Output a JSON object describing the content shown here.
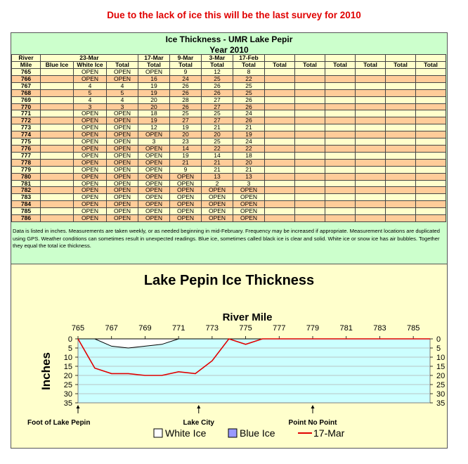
{
  "banner": "Due to the lack of ice this will be the last survey for 2010",
  "table": {
    "title": "Ice Thickness - UMR Lake Pepir",
    "year": "Year 2010",
    "header_row1": [
      "River",
      "23-Mar",
      "17-Mar",
      "9-Mar",
      "3-Mar",
      "17-Feb"
    ],
    "header_row2": [
      "Mile",
      "Blue Ice",
      "White Ice",
      "Total",
      "Total",
      "Total",
      "Total",
      "Total",
      "Total",
      "Total",
      "Total",
      "Total",
      "Total",
      "Total",
      "Total"
    ],
    "rows": [
      [
        "765",
        "",
        "OPEN",
        "OPEN",
        "OPEN",
        "9",
        "12",
        "8"
      ],
      [
        "766",
        "",
        "OPEN",
        "OPEN",
        "16",
        "24",
        "25",
        "22"
      ],
      [
        "767",
        "",
        "4",
        "4",
        "19",
        "26",
        "26",
        "25"
      ],
      [
        "768",
        "",
        "5",
        "5",
        "19",
        "26",
        "26",
        "25"
      ],
      [
        "769",
        "",
        "4",
        "4",
        "20",
        "28",
        "27",
        "26"
      ],
      [
        "770",
        "",
        "3",
        "3",
        "20",
        "26",
        "27",
        "26"
      ],
      [
        "771",
        "",
        "OPEN",
        "OPEN",
        "18",
        "25",
        "25",
        "24"
      ],
      [
        "772",
        "",
        "OPEN",
        "OPEN",
        "19",
        "27",
        "27",
        "26"
      ],
      [
        "773",
        "",
        "OPEN",
        "OPEN",
        "12",
        "19",
        "21",
        "21"
      ],
      [
        "774",
        "",
        "OPEN",
        "OPEN",
        "OPEN",
        "20",
        "20",
        "19"
      ],
      [
        "775",
        "",
        "OPEN",
        "OPEN",
        "3",
        "23",
        "25",
        "24"
      ],
      [
        "776",
        "",
        "OPEN",
        "OPEN",
        "OPEN",
        "14",
        "22",
        "22"
      ],
      [
        "777",
        "",
        "OPEN",
        "OPEN",
        "OPEN",
        "19",
        "14",
        "18"
      ],
      [
        "778",
        "",
        "OPEN",
        "OPEN",
        "OPEN",
        "21",
        "21",
        "20"
      ],
      [
        "779",
        "",
        "OPEN",
        "OPEN",
        "OPEN",
        "9",
        "21",
        "21"
      ],
      [
        "780",
        "",
        "OPEN",
        "OPEN",
        "OPEN",
        "OPEN",
        "13",
        "13"
      ],
      [
        "781",
        "",
        "OPEN",
        "OPEN",
        "OPEN",
        "OPEN",
        "2",
        "3"
      ],
      [
        "782",
        "",
        "OPEN",
        "OPEN",
        "OPEN",
        "OPEN",
        "OPEN",
        "OPEN"
      ],
      [
        "783",
        "",
        "OPEN",
        "OPEN",
        "OPEN",
        "OPEN",
        "OPEN",
        "OPEN"
      ],
      [
        "784",
        "",
        "OPEN",
        "OPEN",
        "OPEN",
        "OPEN",
        "OPEN",
        "OPEN"
      ],
      [
        "785",
        "",
        "OPEN",
        "OPEN",
        "OPEN",
        "OPEN",
        "OPEN",
        "OPEN"
      ],
      [
        "786",
        "",
        "OPEN",
        "OPEN",
        "OPEN",
        "OPEN",
        "OPEN",
        "OPEN"
      ]
    ],
    "note": "Data is listed in inches.  Measurements are taken weekly, or as needed beginning in mid-February.  Frequency may be increased if appropriate.  Measurement locations are duplicated using GPS.  Weather conditions can sometimes result in unexpected readings.  Blue ice, sometimes called black ice is clear and solid.  White ice or snow ice has air bubbles.  Together they equal the total ice thickness."
  },
  "colors": {
    "banner": "#e00000",
    "table_bg": "#ccffcc",
    "row_light": "#ffffcc",
    "row_dark": "#ffcc99",
    "chart_bg": "#ffffcc",
    "plot_bg": "#ccffff",
    "line": "#e00000",
    "blue_ice": "#9999ff",
    "white_ice": "#ffffff"
  },
  "chart_data": {
    "type": "area",
    "title": "Lake Pepin Ice Thickness",
    "xlabel": "River Mile",
    "ylabel": "Inches",
    "xlim": [
      765,
      786
    ],
    "ylim": [
      0,
      35
    ],
    "y_inverted": true,
    "x_ticks": [
      "765",
      "767",
      "769",
      "771",
      "773",
      "775",
      "777",
      "779",
      "781",
      "783",
      "785"
    ],
    "y_ticks": [
      "0",
      "5",
      "10",
      "15",
      "20",
      "25",
      "30",
      "35"
    ],
    "x": [
      765,
      766,
      767,
      768,
      769,
      770,
      771,
      772,
      773,
      774,
      775,
      776,
      777,
      778,
      779,
      780,
      781,
      782,
      783,
      784,
      785,
      786
    ],
    "series": [
      {
        "name": "White Ice",
        "values": [
          0,
          0,
          4,
          5,
          4,
          3,
          0,
          0,
          0,
          0,
          0,
          0,
          0,
          0,
          0,
          0,
          0,
          0,
          0,
          0,
          0,
          0
        ]
      },
      {
        "name": "Blue Ice",
        "values": [
          0,
          0,
          0,
          0,
          0,
          0,
          0,
          0,
          0,
          0,
          0,
          0,
          0,
          0,
          0,
          0,
          0,
          0,
          0,
          0,
          0,
          0
        ]
      },
      {
        "name": "17-Mar",
        "values": [
          0,
          16,
          19,
          19,
          20,
          20,
          18,
          19,
          12,
          0,
          3,
          0,
          0,
          0,
          0,
          0,
          0,
          0,
          0,
          0,
          0,
          0
        ]
      }
    ],
    "landmarks": [
      {
        "label": "Foot of Lake Pepin",
        "mile": 765
      },
      {
        "label": "Lake City",
        "mile": 772.2
      },
      {
        "label": "Point No Point",
        "mile": 779
      }
    ],
    "legend_position": "bottom"
  }
}
